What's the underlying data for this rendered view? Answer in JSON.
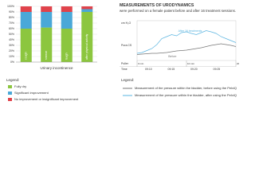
{
  "chart_data": [
    {
      "type": "stacked_bar",
      "categories": [
        "cough",
        "sneeze",
        "laugh",
        "after physical activity"
      ],
      "xlabel": "Urinary incontinence",
      "series": [
        {
          "name": "Fully dry",
          "color": "#8cc63f",
          "values": [
            60,
            62,
            60,
            90
          ]
        },
        {
          "name": "Significant improvement",
          "color": "#4aa8d8",
          "values": [
            30,
            28,
            30,
            5
          ]
        },
        {
          "name": "No improvement or insignificant improvement",
          "color": "#e0434b",
          "values": [
            10,
            10,
            10,
            5
          ]
        }
      ],
      "legend_title": "Legend:",
      "ylim": [
        0,
        100
      ],
      "yticks": [
        {
          "value": 0,
          "label": "0%"
        },
        {
          "value": 10,
          "label": "10%"
        },
        {
          "value": 20,
          "label": "20%"
        },
        {
          "value": 30,
          "label": "30%"
        },
        {
          "value": 40,
          "label": "40%"
        },
        {
          "value": 50,
          "label": "50%"
        },
        {
          "value": 60,
          "label": "60%"
        },
        {
          "value": 70,
          "label": "70%"
        },
        {
          "value": 80,
          "label": "80%"
        },
        {
          "value": 90,
          "label": "90%"
        },
        {
          "value": 100,
          "label": "100%"
        }
      ],
      "grid": true
    },
    {
      "type": "line",
      "title_bold": "MEASUREMENTS OF URODYNAMICS",
      "title": "were performed on a female patient before and after 16 treatment sessions.",
      "ylabel": "cm H₂O",
      "channel_label": "Pura.CS",
      "row_labels": [
        "Puller",
        "Time"
      ],
      "times": [
        "09:10",
        "09:15",
        "09:20",
        "09:25"
      ],
      "x": [
        0,
        1,
        2,
        3,
        4,
        5,
        6,
        7,
        8,
        9,
        10,
        11,
        12,
        13,
        14,
        15,
        16,
        17,
        18,
        19,
        20
      ],
      "series": [
        {
          "name": "After 16 treatments",
          "color": "#5ab4e0",
          "values": [
            18,
            20,
            25,
            30,
            40,
            55,
            60,
            65,
            62,
            70,
            72,
            68,
            65,
            70,
            75,
            72,
            68,
            60,
            55,
            50,
            45
          ]
        },
        {
          "name": "Before",
          "color": "#777777",
          "values": [
            15,
            16,
            17,
            18,
            18,
            19,
            20,
            22,
            24,
            25,
            26,
            28,
            30,
            32,
            35,
            38,
            40,
            42,
            40,
            38,
            35
          ]
        }
      ],
      "xlim": [
        0,
        20
      ],
      "xticks": [
        {
          "value": 0,
          "label": "0 min"
        },
        {
          "value": 10,
          "label": "10 min"
        },
        {
          "value": 20,
          "label": "20 min"
        }
      ],
      "ylim": [
        0,
        100
      ],
      "legend_title": "Legend:",
      "legend": [
        {
          "label": "Measurement of the pressure within the bladder, before using the PelviQ",
          "color": "#777777"
        },
        {
          "label": "Measurement of the pressure within the bladder, after using the PelviQ",
          "color": "#5ab4e0"
        }
      ]
    }
  ]
}
